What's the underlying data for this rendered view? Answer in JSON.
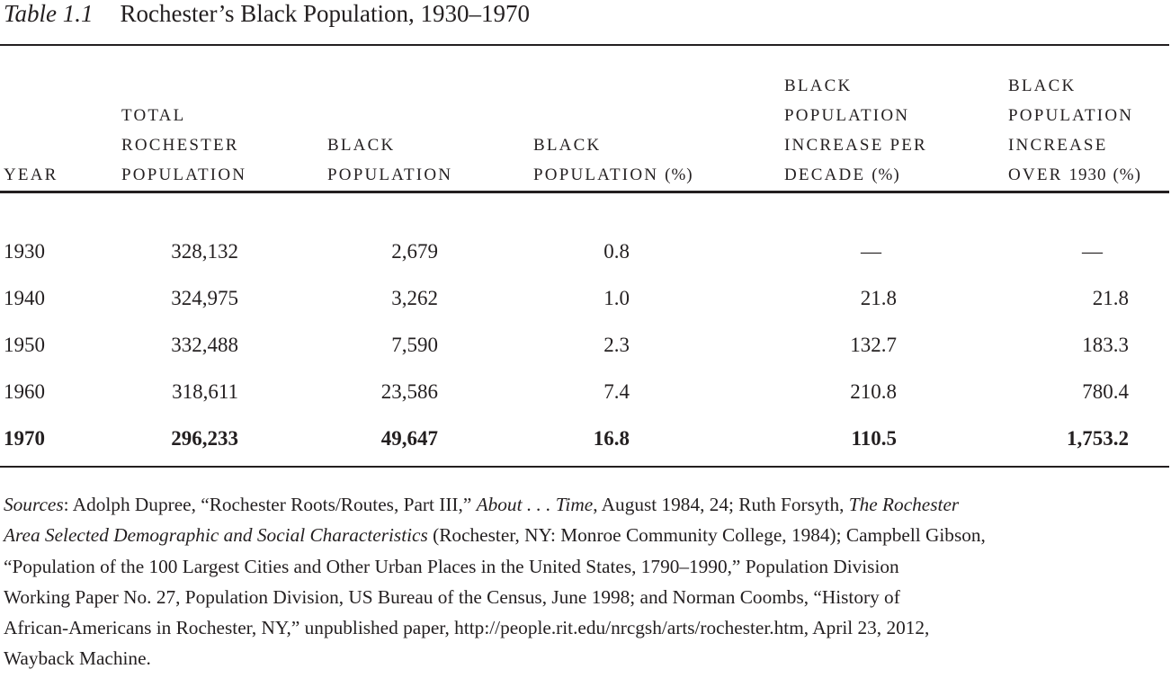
{
  "title": {
    "number": "Table 1.1",
    "text": "Rochester’s Black Population, 1930–1970"
  },
  "headers": [
    [
      "Year"
    ],
    [
      "Total",
      "Rochester",
      "Population"
    ],
    [
      "Black",
      "Population"
    ],
    [
      "Black",
      "Population (%)"
    ],
    [
      "Black",
      "Population",
      "Increase per",
      "Decade (%)"
    ],
    [
      "Black",
      "Population",
      "Increase",
      "Over 1930 (%)"
    ]
  ],
  "rows": [
    [
      "1930",
      "328,132",
      "2,679",
      "0.8",
      "—",
      "—"
    ],
    [
      "1940",
      "324,975",
      "3,262",
      "1.0",
      "21.8",
      "21.8"
    ],
    [
      "1950",
      "332,488",
      "7,590",
      "2.3",
      "132.7",
      "183.3"
    ],
    [
      "1960",
      "318,611",
      "23,586",
      "7.4",
      "210.8",
      "780.4"
    ],
    [
      "1970",
      "296,233",
      "49,647",
      "16.8",
      "110.5",
      "1,753.2"
    ]
  ],
  "sources": {
    "l1a": "Sources",
    "l1b": ": Adolph Dupree, “Rochester Roots/Routes, Part III,” ",
    "l1c": "About . . . Time",
    "l1d": ", August 1984, 24; Ruth Forsyth, ",
    "l1e": "The Rochester",
    "l2a": "Area Selected Demographic and Social Characteristics",
    "l2b": " (Rochester, NY: Monroe Community College, 1984); Campbell Gibson,",
    "l3": "“Population of the 100 Largest Cities and Other Urban Places in the United States, 1790–1990,” Population Division",
    "l4": "Working Paper No. 27, Population Division, US Bureau of the Census, June 1998; and Norman Coombs, “History of",
    "l5": "African-Americans in Rochester, NY,” unpublished paper, http://people.rit.edu/nrcgsh/arts/rochester.htm, April 23, 2012,",
    "l6": "Wayback Machine."
  }
}
